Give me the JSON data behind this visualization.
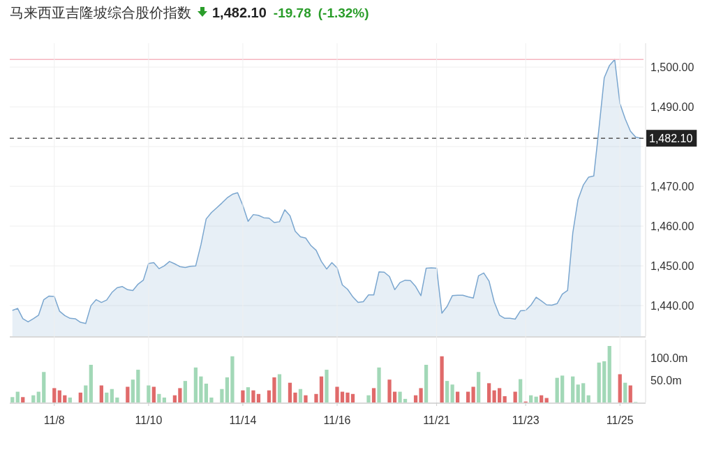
{
  "chart_data": [
    {
      "type": "area",
      "title": "马来西亚吉隆坡综合股价指数",
      "annotations": [
        "1,482.10",
        "-19.78",
        "(-1.32%)"
      ],
      "categories": [
        null,
        null,
        null,
        null,
        null,
        null,
        null,
        null,
        null,
        null,
        null,
        null,
        null,
        null,
        null,
        null,
        null,
        null,
        null,
        null,
        null,
        null,
        null,
        null,
        null,
        null,
        null,
        null,
        null,
        null,
        null,
        null,
        null,
        null,
        null,
        null,
        null,
        null,
        null,
        null,
        null,
        null,
        null,
        null,
        null,
        null,
        null,
        null,
        null,
        null,
        null,
        null,
        null,
        null,
        null,
        null,
        null,
        null,
        null,
        null,
        null,
        null,
        null,
        null,
        null,
        null,
        null,
        null,
        null,
        null,
        null,
        null,
        null,
        null,
        null,
        null,
        null,
        null,
        null,
        null,
        null,
        null,
        null,
        null,
        null,
        null,
        null,
        null,
        null,
        null,
        null,
        null,
        null,
        null,
        null,
        null,
        null,
        null,
        null,
        null,
        null,
        null,
        null,
        null,
        null,
        null,
        null,
        null,
        null,
        null,
        null,
        null,
        null,
        null,
        null,
        null,
        null,
        null,
        null,
        null,
        null
      ],
      "values": [
        1438.8,
        1439.3,
        1436.7,
        1435.9,
        1436.7,
        1437.6,
        1441.5,
        1442.4,
        1442.3,
        1438.6,
        1437.5,
        1436.8,
        1436.7,
        1435.8,
        1435.5,
        1440.0,
        1441.5,
        1440.8,
        1441.4,
        1443.3,
        1444.5,
        1444.8,
        1444.0,
        1443.8,
        1445.4,
        1446.4,
        1450.6,
        1450.8,
        1449.3,
        1450.0,
        1451.1,
        1450.5,
        1449.8,
        1449.6,
        1449.9,
        1450.0,
        1455.3,
        1461.8,
        1463.4,
        1464.6,
        1465.8,
        1467.1,
        1468.0,
        1468.4,
        1465.2,
        1461.2,
        1462.9,
        1462.7,
        1462.1,
        1462.0,
        1460.9,
        1461.1,
        1464.1,
        1462.6,
        1458.7,
        1457.3,
        1457.0,
        1455.1,
        1453.9,
        1451.1,
        1449.2,
        1450.8,
        1449.5,
        1445.2,
        1444.1,
        1442.2,
        1440.8,
        1441.0,
        1442.7,
        1442.7,
        1448.5,
        1448.4,
        1447.3,
        1444.0,
        1445.8,
        1446.4,
        1446.3,
        1444.8,
        1442.5,
        1449.4,
        1449.5,
        1449.4,
        1438.1,
        1439.8,
        1442.5,
        1442.6,
        1442.6,
        1442.2,
        1441.9,
        1447.5,
        1448.2,
        1446.2,
        1440.9,
        1437.6,
        1436.8,
        1436.8,
        1436.6,
        1438.7,
        1438.8,
        1440.1,
        1442.1,
        1441.2,
        1440.2,
        1440.1,
        1440.5,
        1442.9,
        1443.8,
        1458.3,
        1466.7,
        1470.3,
        1472.3,
        1472.6,
        1484.6,
        1497.3,
        1500.4,
        1501.9,
        1490.8,
        1487.0,
        1483.9,
        1482.4,
        1482.1
      ],
      "color": "#7aa6cf",
      "ylim": [
        1432.3,
        1506
      ],
      "yticks": [
        {
          "value": 1440,
          "label": "1,440.00"
        },
        {
          "value": 1450,
          "label": "1,450.00"
        },
        {
          "value": 1460,
          "label": "1,460.00"
        },
        {
          "value": 1470,
          "label": "1,470.00"
        },
        {
          "value": 1480,
          "label": null
        },
        {
          "value": 1490,
          "label": "1,490.00"
        },
        {
          "value": 1500,
          "label": "1,500.00"
        }
      ],
      "ref_lines": [
        {
          "axis": "y",
          "value": 1501.9,
          "color": "#f5b5bf",
          "line_style": "solid"
        },
        {
          "axis": "y",
          "value": 1482.1,
          "label": "1,482.10",
          "color": "#555555",
          "line_style": "dashed"
        }
      ],
      "grid": "y",
      "tick_labels": "y"
    },
    {
      "type": "bar",
      "categories": [
        null,
        null,
        null,
        null,
        null,
        null,
        null,
        null,
        "11/8",
        null,
        null,
        null,
        null,
        null,
        null,
        null,
        null,
        null,
        null,
        null,
        null,
        null,
        null,
        null,
        null,
        null,
        "11/10",
        null,
        null,
        null,
        null,
        null,
        null,
        null,
        null,
        null,
        null,
        null,
        null,
        null,
        null,
        null,
        null,
        null,
        "11/14",
        null,
        null,
        null,
        null,
        null,
        null,
        null,
        null,
        null,
        null,
        null,
        null,
        null,
        null,
        null,
        null,
        null,
        "11/16",
        null,
        null,
        null,
        null,
        null,
        null,
        null,
        null,
        null,
        null,
        null,
        null,
        null,
        null,
        null,
        null,
        null,
        null,
        "11/21",
        null,
        null,
        null,
        null,
        null,
        null,
        null,
        null,
        null,
        null,
        null,
        null,
        null,
        null,
        null,
        null,
        "11/23",
        null,
        null,
        null,
        null,
        null,
        null,
        null,
        null,
        null,
        null,
        null,
        null,
        null,
        null,
        null,
        null,
        null,
        "11/25",
        null,
        null,
        null,
        null
      ],
      "values": [
        12,
        24,
        12,
        null,
        16,
        24,
        68,
        null,
        32,
        27,
        16,
        11,
        null,
        22,
        38,
        84,
        null,
        38,
        22,
        30,
        11,
        null,
        35,
        51,
        73,
        null,
        38,
        35,
        19,
        11,
        null,
        16,
        32,
        48,
        null,
        78,
        58,
        42,
        11,
        null,
        30,
        56,
        103,
        null,
        27,
        34,
        27,
        19,
        null,
        27,
        56,
        63,
        null,
        44,
        22,
        30,
        16,
        null,
        19,
        58,
        73,
        null,
        35,
        24,
        22,
        19,
        null,
        null,
        16,
        32,
        78,
        null,
        51,
        24,
        24,
        8,
        null,
        16,
        32,
        84,
        null,
        null,
        103,
        48,
        40,
        24,
        null,
        24,
        35,
        68,
        null,
        43,
        27,
        32,
        14,
        null,
        24,
        52,
        2,
        16,
        13,
        16,
        10,
        null,
        55,
        60,
        null,
        58,
        40,
        43,
        16,
        null,
        89,
        92,
        126,
        null,
        63,
        44,
        38,
        1,
        null
      ],
      "colors": [
        "#a2d8b7",
        "#a2d8b7",
        "#e06a6a",
        null,
        "#a2d8b7",
        "#a2d8b7",
        "#a2d8b7",
        null,
        "#e06a6a",
        "#e06a6a",
        "#e06a6a",
        "#a2d8b7",
        null,
        "#e06a6a",
        "#a2d8b7",
        "#a2d8b7",
        null,
        "#e06a6a",
        "#a2d8b7",
        "#a2d8b7",
        "#a2d8b7",
        null,
        "#e06a6a",
        "#a2d8b7",
        "#a2d8b7",
        null,
        "#a2d8b7",
        "#e06a6a",
        "#a2d8b7",
        "#a2d8b7",
        null,
        "#e06a6a",
        "#e06a6a",
        "#a2d8b7",
        null,
        "#a2d8b7",
        "#a2d8b7",
        "#a2d8b7",
        "#a2d8b7",
        null,
        "#a2d8b7",
        "#a2d8b7",
        "#a2d8b7",
        null,
        "#e06a6a",
        "#a2d8b7",
        "#e06a6a",
        "#e06a6a",
        null,
        "#e06a6a",
        "#e06a6a",
        "#a2d8b7",
        null,
        "#e06a6a",
        "#e06a6a",
        "#a2d8b7",
        "#e06a6a",
        null,
        "#e06a6a",
        "#e06a6a",
        "#a2d8b7",
        null,
        "#e06a6a",
        "#e06a6a",
        "#e06a6a",
        "#e06a6a",
        null,
        null,
        "#a2d8b7",
        "#e06a6a",
        "#a2d8b7",
        null,
        "#e06a6a",
        "#e06a6a",
        "#a2d8b7",
        "#a2d8b7",
        null,
        "#e06a6a",
        "#e06a6a",
        "#a2d8b7",
        null,
        null,
        "#e06a6a",
        "#a2d8b7",
        "#a2d8b7",
        "#e06a6a",
        null,
        "#e06a6a",
        "#e06a6a",
        "#a2d8b7",
        null,
        "#e06a6a",
        "#e06a6a",
        "#e06a6a",
        "#e06a6a",
        null,
        "#e06a6a",
        "#a2d8b7",
        "#e06a6a",
        "#a2d8b7",
        "#a2d8b7",
        "#e06a6a",
        "#e06a6a",
        null,
        "#a2d8b7",
        "#a2d8b7",
        null,
        "#a2d8b7",
        "#a2d8b7",
        "#a2d8b7",
        "#a2d8b7",
        null,
        "#a2d8b7",
        "#a2d8b7",
        "#a2d8b7",
        null,
        "#e06a6a",
        "#a2d8b7",
        "#e06a6a",
        "#a2d8b7",
        null
      ],
      "ylim": [
        0,
        140
      ],
      "yticks": [
        {
          "value": 50,
          "label": "50.0m"
        },
        {
          "value": 100,
          "label": "100.0m"
        }
      ],
      "grid": "x"
    }
  ]
}
